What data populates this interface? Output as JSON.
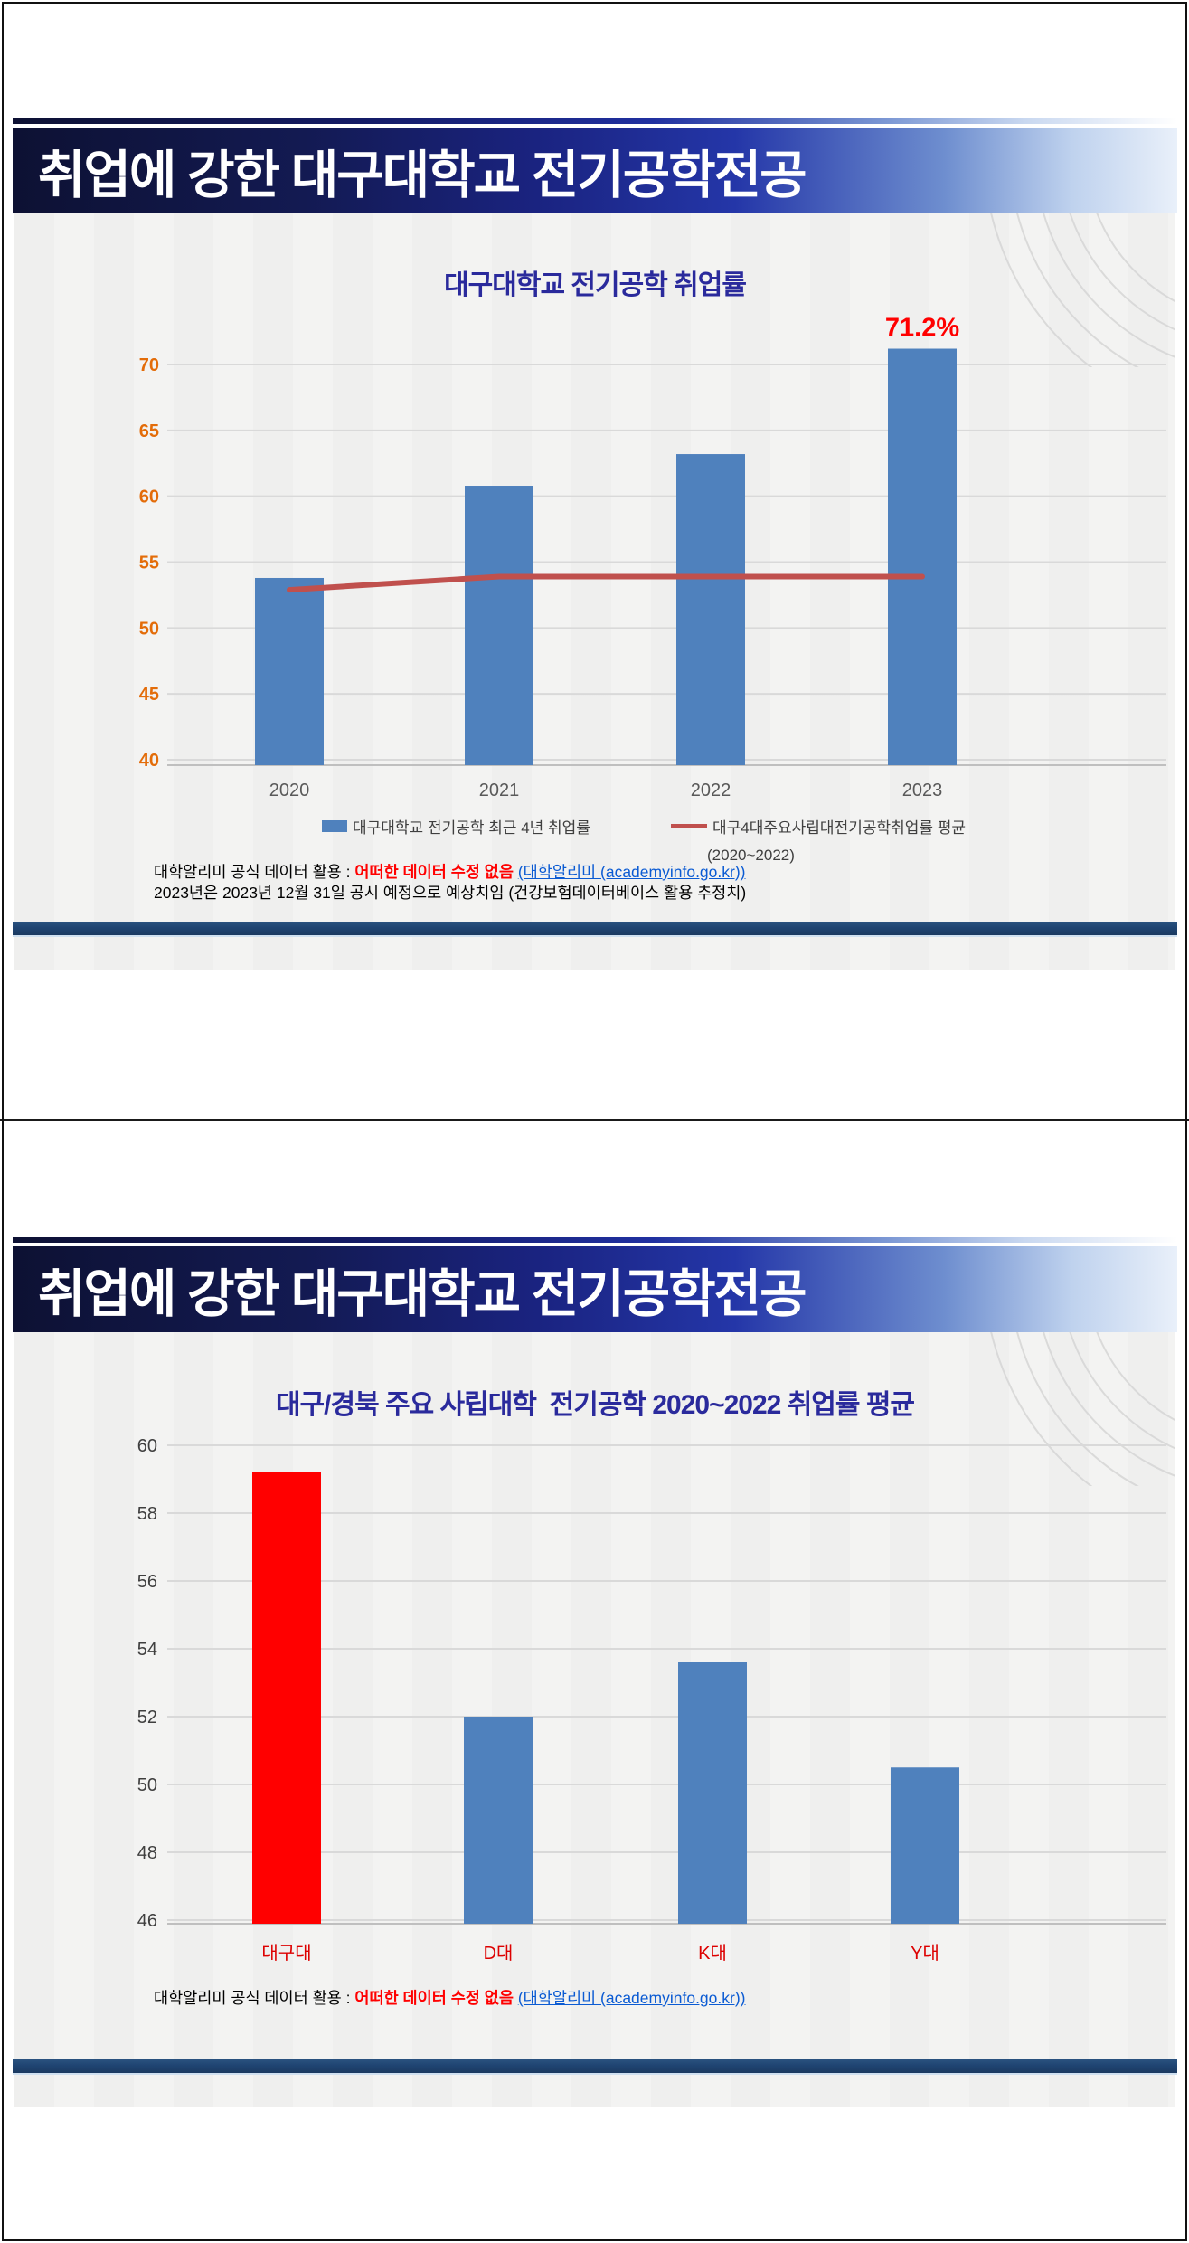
{
  "banner_title": "취업에 강한 대구대학교 전기공학전공",
  "slides": [
    {
      "footer_prefix": "대학알리미 공식 데이터 활용 : ",
      "footer_red": "어떠한 데이터 수정 없음 ",
      "footer_link": "(대학알리미 (academyinfo.go.kr))",
      "footer_line2": "2023년은 2023년 12월 31일 공시 예정으로 예상치임 (건강보험데이터베이스 활용 추정치)"
    },
    {
      "footer_prefix": "대학알리미 공식 데이터 활용 : ",
      "footer_red": "어떠한 데이터 수정 없음 ",
      "footer_link": "(대학알리미 (academyinfo.go.kr))"
    }
  ],
  "chart_data": [
    {
      "type": "bar",
      "title": "대구대학교 전기공학 취업률",
      "categories": [
        "2020",
        "2021",
        "2022",
        "2023"
      ],
      "series": [
        {
          "name": "대구대학교 전기공학 최근 4년 취업률",
          "kind": "bar",
          "color": "#4f81bd",
          "values": [
            53.8,
            60.8,
            63.2,
            71.2
          ]
        },
        {
          "name": "대구4대주요사립대전기공학취업률 평균",
          "kind": "line",
          "color": "#c0504d",
          "values": [
            52.9,
            53.9,
            53.9,
            53.9
          ],
          "period_note": "(2020~2022)"
        }
      ],
      "ylim": [
        40,
        70
      ],
      "yticks": [
        40,
        45,
        50,
        55,
        60,
        65,
        70
      ],
      "ytick_color": "#e36c09",
      "xtick_color": "#595959",
      "grid": true,
      "legend_position": "bottom",
      "annotation": {
        "text": "71.2%",
        "category": "2023",
        "color": "#ff0000"
      }
    },
    {
      "type": "bar",
      "title": "대구/경북 주요 사립대학  전기공학 2020~2022 취업률 평균",
      "categories": [
        "대구대",
        "D대",
        "K대",
        "Y대"
      ],
      "values": [
        59.2,
        52.0,
        53.6,
        50.5
      ],
      "bar_colors": [
        "#ff0000",
        "#4f81bd",
        "#4f81bd",
        "#4f81bd"
      ],
      "ylim": [
        46,
        60
      ],
      "yticks": [
        46,
        48,
        50,
        52,
        54,
        56,
        58,
        60
      ],
      "ytick_color": "#3f3f3f",
      "xtick_color": "#dd0000",
      "grid": true,
      "legend_position": "none"
    }
  ],
  "colors": {
    "bar_blue": "#4f81bd",
    "bar_red": "#ff0000",
    "trend_line": "#c0504d",
    "gridline": "#d9d9d9",
    "axis_line": "#bfbfbf",
    "chart_title": "#2a2a9c",
    "banner_navy": "#0d1133",
    "bottom_bar_navy": "#1f4472",
    "annotation_red": "#ff0000",
    "link_blue": "#0b5bd3"
  }
}
